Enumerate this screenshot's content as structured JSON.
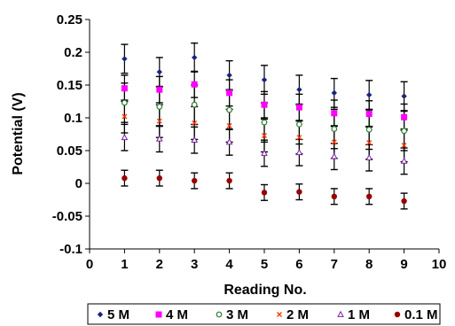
{
  "chart_data": {
    "type": "scatter",
    "xlabel": "Reading No.",
    "ylabel": "Potential (V)",
    "xlim": [
      0,
      10
    ],
    "ylim": [
      -0.1,
      0.25
    ],
    "xticks": [
      0,
      1,
      2,
      3,
      4,
      5,
      6,
      7,
      8,
      9,
      10
    ],
    "yticks": [
      -0.1,
      -0.05,
      0,
      0.05,
      0.1,
      0.15,
      0.2,
      0.25
    ],
    "ytick_labels": [
      "-0.1",
      "-0.05",
      "0",
      "0.05",
      "0.1",
      "0.15",
      "0.2",
      "0.25"
    ],
    "xtick_labels": [
      "0",
      "1",
      "2",
      "3",
      "4",
      "5",
      "6",
      "7",
      "8",
      "9",
      "10"
    ],
    "grid": false,
    "error_bars": true,
    "legend_position": "bottom",
    "x": [
      1,
      2,
      3,
      4,
      5,
      6,
      7,
      8,
      9
    ],
    "series": [
      {
        "name": "5 M",
        "marker": "diamond",
        "color": "#1a237e",
        "values": [
          0.19,
          0.17,
          0.192,
          0.165,
          0.158,
          0.143,
          0.138,
          0.135,
          0.133
        ],
        "error": [
          0.022,
          0.022,
          0.022,
          0.022,
          0.022,
          0.022,
          0.022,
          0.022,
          0.022
        ]
      },
      {
        "name": "4 M",
        "marker": "square",
        "color": "#ff00ff",
        "values": [
          0.145,
          0.143,
          0.151,
          0.138,
          0.12,
          0.116,
          0.107,
          0.106,
          0.101
        ],
        "error": [
          0.02,
          0.02,
          0.02,
          0.02,
          0.02,
          0.02,
          0.02,
          0.02,
          0.02
        ]
      },
      {
        "name": "3 M",
        "marker": "circle-open",
        "color": "#2e7d32",
        "values": [
          0.123,
          0.117,
          0.12,
          0.112,
          0.093,
          0.09,
          0.083,
          0.082,
          0.08
        ],
        "error": [
          0.03,
          0.03,
          0.03,
          0.03,
          0.03,
          0.03,
          0.03,
          0.03,
          0.03
        ]
      },
      {
        "name": "2 M",
        "marker": "x",
        "color": "#ff3300",
        "values": [
          0.102,
          0.095,
          0.092,
          0.088,
          0.073,
          0.07,
          0.063,
          0.062,
          0.058
        ],
        "error": [
          0.025,
          0.025,
          0.025,
          0.025,
          0.025,
          0.025,
          0.025,
          0.025,
          0.025
        ]
      },
      {
        "name": "1 M",
        "marker": "triangle-open",
        "color": "#7b1fa2",
        "values": [
          0.07,
          0.068,
          0.066,
          0.063,
          0.046,
          0.047,
          0.041,
          0.039,
          0.034
        ],
        "error": [
          0.02,
          0.02,
          0.02,
          0.02,
          0.02,
          0.02,
          0.02,
          0.02,
          0.02
        ]
      },
      {
        "name": "0.1 M",
        "marker": "circle",
        "color": "#990000",
        "values": [
          0.008,
          0.008,
          0.004,
          0.004,
          -0.014,
          -0.013,
          -0.02,
          -0.02,
          -0.027
        ],
        "error": [
          0.012,
          0.012,
          0.012,
          0.012,
          0.012,
          0.012,
          0.012,
          0.012,
          0.012
        ]
      }
    ]
  }
}
